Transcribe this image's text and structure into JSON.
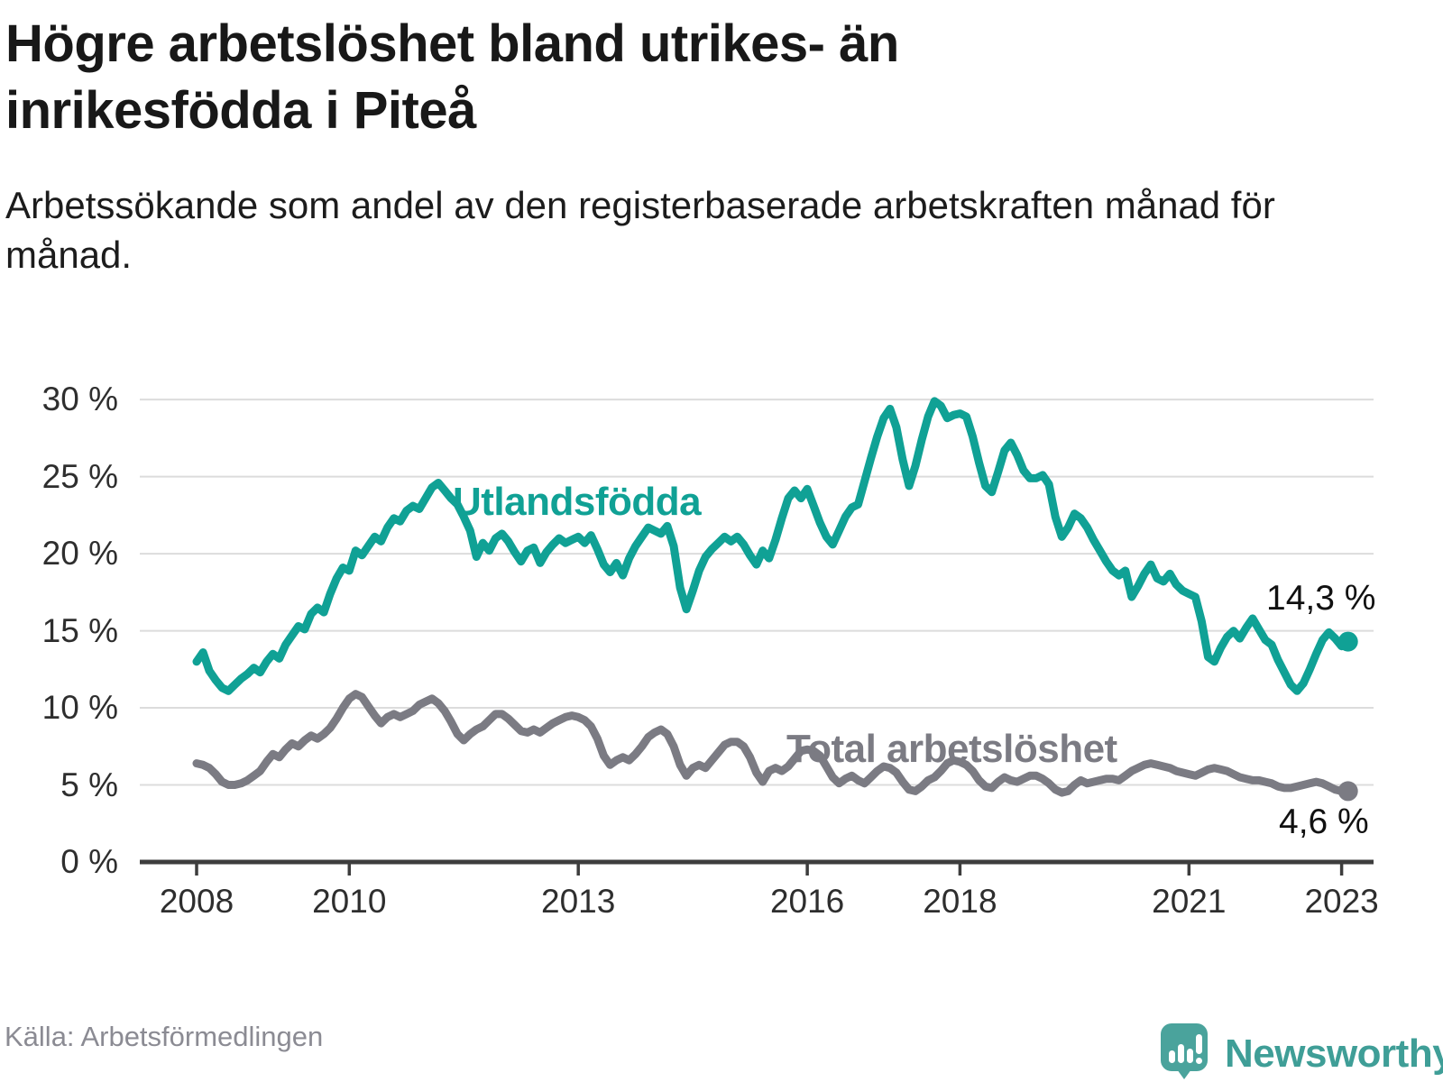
{
  "header": {
    "title": "Högre arbetslöshet bland utrikes- än inrikesfödda i Piteå",
    "subtitle": "Arbetssökande som andel av den registerbaserade arbetskraften månad för månad."
  },
  "chart_data": {
    "type": "line",
    "unit": "%",
    "frequency": "monthly",
    "start_year": 2008,
    "start_month": 1,
    "ylim": [
      0,
      31
    ],
    "grid": "horizontal",
    "colors": {
      "grid": "#dcdcdc",
      "axis": "#3d3d3d",
      "tick_text": "#2e2e2e"
    },
    "y_ticks": [
      0,
      5,
      10,
      15,
      20,
      25,
      30
    ],
    "y_tick_labels": [
      "0 %",
      "5 %",
      "10 %",
      "15 %",
      "20 %",
      "25 %",
      "30 %"
    ],
    "x_ticks": [
      2008,
      2010,
      2013,
      2016,
      2018,
      2021,
      2023
    ],
    "x_tick_labels": [
      "2008",
      "2010",
      "2013",
      "2016",
      "2018",
      "2021",
      "2023"
    ],
    "series": [
      {
        "name": "Utlandsfödda",
        "color": "#10a195",
        "end_label": "14,3 %",
        "end_value": 14.3,
        "values": [
          13.0,
          13.6,
          12.4,
          11.8,
          11.3,
          11.1,
          11.5,
          11.9,
          12.2,
          12.6,
          12.3,
          13.0,
          13.5,
          13.2,
          14.1,
          14.7,
          15.3,
          15.1,
          16.1,
          16.5,
          16.2,
          17.4,
          18.4,
          19.1,
          18.9,
          20.2,
          19.9,
          20.5,
          21.1,
          20.8,
          21.7,
          22.3,
          22.1,
          22.8,
          23.1,
          22.9,
          23.6,
          24.3,
          24.6,
          24.1,
          23.6,
          23.2,
          22.4,
          21.5,
          19.8,
          20.7,
          20.2,
          21.0,
          21.3,
          20.8,
          20.1,
          19.5,
          20.2,
          20.4,
          19.4,
          20.1,
          20.6,
          21.0,
          20.7,
          20.9,
          21.1,
          20.7,
          21.2,
          20.3,
          19.3,
          18.8,
          19.4,
          18.6,
          19.7,
          20.5,
          21.1,
          21.7,
          21.5,
          21.3,
          21.8,
          20.5,
          17.8,
          16.4,
          17.6,
          18.9,
          19.8,
          20.3,
          20.7,
          21.1,
          20.8,
          21.1,
          20.6,
          19.9,
          19.3,
          20.2,
          19.7,
          20.9,
          22.3,
          23.6,
          24.1,
          23.6,
          24.2,
          23.1,
          22.0,
          21.1,
          20.6,
          21.5,
          22.4,
          23.0,
          23.2,
          24.7,
          26.2,
          27.6,
          28.8,
          29.4,
          28.2,
          26.1,
          24.4,
          25.7,
          27.4,
          28.9,
          29.9,
          29.6,
          28.8,
          29.0,
          29.1,
          28.9,
          27.6,
          25.9,
          24.4,
          24.0,
          25.3,
          26.7,
          27.2,
          26.4,
          25.4,
          24.9,
          24.9,
          25.1,
          24.5,
          22.4,
          21.1,
          21.7,
          22.6,
          22.3,
          21.7,
          20.9,
          20.2,
          19.5,
          18.9,
          18.6,
          18.9,
          17.2,
          17.9,
          18.7,
          19.3,
          18.4,
          18.2,
          18.7,
          18.0,
          17.6,
          17.4,
          17.2,
          15.6,
          13.3,
          13.0,
          13.9,
          14.6,
          15.0,
          14.5,
          15.2,
          15.8,
          15.1,
          14.4,
          14.1,
          13.1,
          12.3,
          11.5,
          11.1,
          11.6,
          12.5,
          13.5,
          14.4,
          14.9,
          14.5,
          14.0,
          14.3
        ]
      },
      {
        "name": "Total arbetslöshet",
        "color": "#7b7b83",
        "end_label": "4,6 %",
        "end_value": 4.6,
        "values": [
          6.4,
          6.3,
          6.1,
          5.7,
          5.2,
          5.0,
          5.0,
          5.1,
          5.3,
          5.6,
          5.9,
          6.5,
          7.0,
          6.8,
          7.3,
          7.7,
          7.5,
          7.9,
          8.2,
          8.0,
          8.3,
          8.7,
          9.3,
          10.0,
          10.6,
          10.9,
          10.7,
          10.1,
          9.5,
          9.0,
          9.4,
          9.6,
          9.4,
          9.6,
          9.8,
          10.2,
          10.4,
          10.6,
          10.3,
          9.8,
          9.1,
          8.3,
          7.9,
          8.3,
          8.6,
          8.8,
          9.2,
          9.6,
          9.6,
          9.3,
          8.9,
          8.5,
          8.4,
          8.6,
          8.4,
          8.7,
          9.0,
          9.2,
          9.4,
          9.5,
          9.4,
          9.2,
          8.8,
          8.0,
          6.9,
          6.3,
          6.6,
          6.8,
          6.6,
          7.0,
          7.5,
          8.1,
          8.4,
          8.6,
          8.3,
          7.5,
          6.3,
          5.6,
          6.1,
          6.3,
          6.1,
          6.6,
          7.1,
          7.6,
          7.8,
          7.8,
          7.5,
          6.8,
          5.8,
          5.2,
          5.9,
          6.1,
          5.9,
          6.2,
          6.7,
          7.2,
          7.3,
          7.2,
          6.9,
          6.2,
          5.5,
          5.1,
          5.4,
          5.6,
          5.3,
          5.1,
          5.5,
          5.9,
          6.2,
          6.1,
          5.8,
          5.2,
          4.7,
          4.6,
          4.9,
          5.3,
          5.5,
          5.9,
          6.4,
          6.6,
          6.5,
          6.3,
          5.9,
          5.3,
          4.9,
          4.8,
          5.2,
          5.5,
          5.3,
          5.2,
          5.4,
          5.6,
          5.6,
          5.4,
          5.1,
          4.7,
          4.5,
          4.6,
          5.0,
          5.3,
          5.1,
          5.2,
          5.3,
          5.4,
          5.4,
          5.3,
          5.6,
          5.9,
          6.1,
          6.3,
          6.4,
          6.3,
          6.2,
          6.1,
          5.9,
          5.8,
          5.7,
          5.6,
          5.8,
          6.0,
          6.1,
          6.0,
          5.9,
          5.7,
          5.5,
          5.4,
          5.3,
          5.3,
          5.2,
          5.1,
          4.9,
          4.8,
          4.8,
          4.9,
          5.0,
          5.1,
          5.2,
          5.1,
          4.9,
          4.7,
          4.6,
          4.6
        ]
      }
    ]
  },
  "footer": {
    "source": "Källa: Arbetsförmedlingen",
    "brand": "Newsworthy",
    "brand_icon": "bar-chart-speech-bubble-icon",
    "brand_color": "#4aa39c"
  }
}
